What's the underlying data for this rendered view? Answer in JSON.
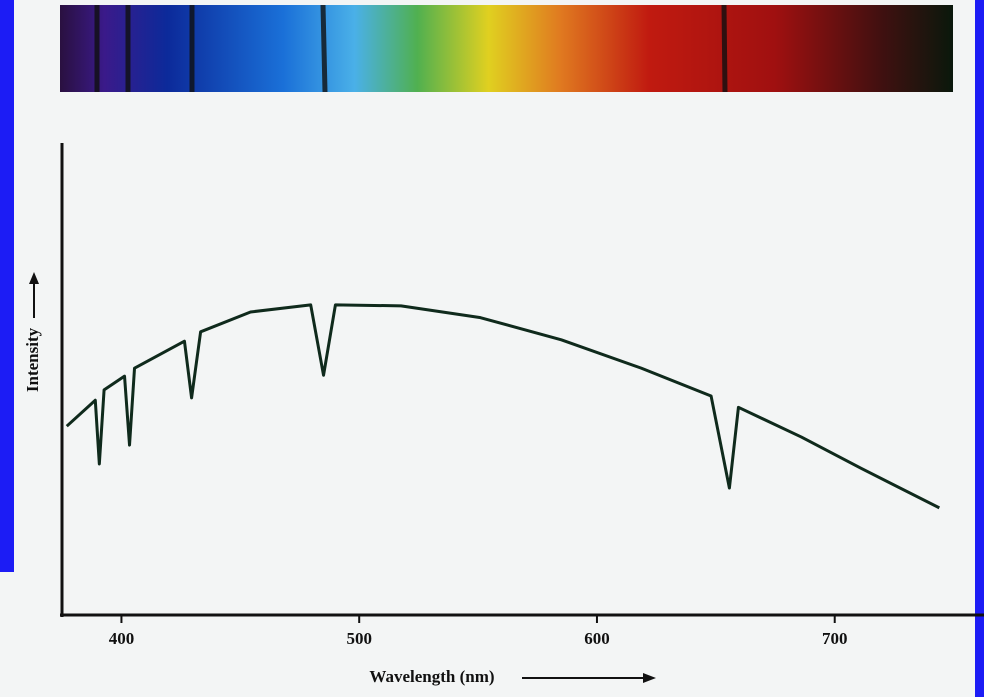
{
  "chart_data": {
    "type": "line",
    "x_label": "Wavelength (nm)",
    "y_label": "Intensity",
    "x": [
      377,
      389,
      390.7,
      392.7,
      401.3,
      403.4,
      405.5,
      426.5,
      429.5,
      433.3,
      454.3,
      479.6,
      485,
      490,
      517.6,
      551,
      585,
      618.6,
      648,
      655.7,
      659.5,
      686,
      711,
      744
    ],
    "series": [
      {
        "name": "Intensity",
        "color": "#0f2a1c",
        "values": [
          0.4,
          0.455,
          0.32,
          0.477,
          0.506,
          0.36,
          0.523,
          0.58,
          0.46,
          0.6,
          0.642,
          0.657,
          0.508,
          0.657,
          0.655,
          0.63,
          0.583,
          0.523,
          0.464,
          0.269,
          0.44,
          0.377,
          0.311,
          0.227
        ]
      }
    ],
    "xlim": [
      375,
      759
    ],
    "xticks": [
      400,
      500,
      600,
      700
    ],
    "ylim": [
      0,
      1
    ]
  }
}
